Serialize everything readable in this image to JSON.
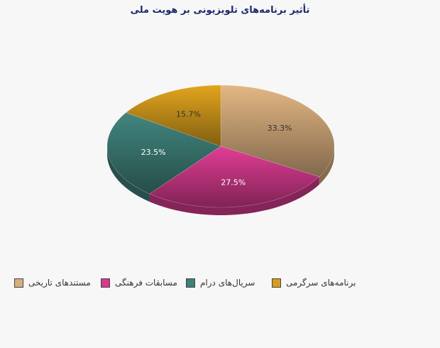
{
  "chart_data": {
    "type": "pie",
    "title": "تأثیر برنامه‌های تلویزیونی بر هویت ملی",
    "slices": [
      {
        "label": "مستندهای تاریخی",
        "value": 33.3,
        "value_label": "33.3%",
        "color": "#d8ae7e"
      },
      {
        "label": "مسابقات فرهنگی",
        "value": 27.5,
        "value_label": "27.5%",
        "color": "#d63a8e"
      },
      {
        "label": "سریال‌های درام",
        "value": 23.5,
        "value_label": "23.5%",
        "color": "#3f8079"
      },
      {
        "label": "برنامه‌های سرگرمی",
        "value": 15.7,
        "value_label": "15.7%",
        "color": "#d79d1c"
      }
    ],
    "legend_position": "bottom",
    "three_d": true
  }
}
